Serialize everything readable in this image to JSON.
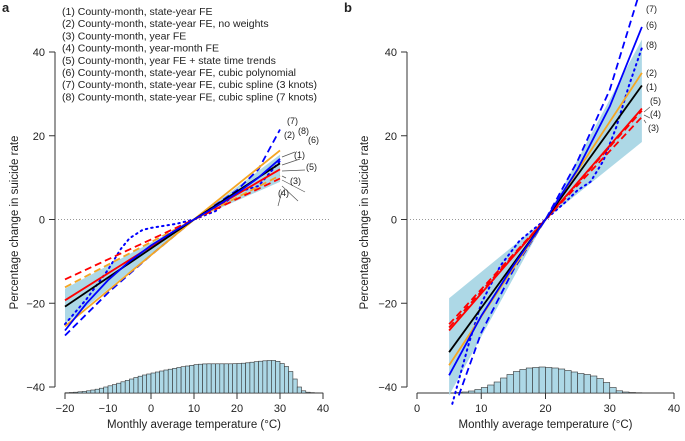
{
  "chart_data": [
    {
      "panel": "a",
      "type": "line",
      "xlabel": "Monthly average temperature (°C)",
      "ylabel": "Percentage change in suicide rate",
      "xlim": [
        -20,
        40
      ],
      "ylim": [
        -40,
        40
      ],
      "xticks": [
        -20,
        -10,
        0,
        10,
        20,
        30,
        40
      ],
      "yticks": [
        -40,
        -20,
        0,
        20,
        40
      ],
      "reference_line": 0,
      "legend_placement": "top-left",
      "legend": [
        "(1) County-month, state-year FE",
        "(2) County-month, state-year FE, no weights",
        "(3) County-month, year FE",
        "(4) County-month, year-month FE",
        "(5) County-month, year FE + state time trends",
        "(6) County-month, state-year FE, cubic polynomial",
        "(7) County-month, state-year FE, cubic spline (3 knots)",
        "(8) County-month, state-year FE, cubic spline (7 knots)"
      ],
      "confidence_band": {
        "x": [
          -20,
          10,
          30
        ],
        "lower": [
          -25,
          0,
          9
        ],
        "upper": [
          -16.5,
          0,
          15.5
        ],
        "color": "#add8e6"
      },
      "series": [
        {
          "name": "(1)",
          "color": "#000000",
          "style": "solid",
          "x": [
            -20,
            10,
            30
          ],
          "y": [
            -20.8,
            0,
            13.4
          ]
        },
        {
          "name": "(2)",
          "color": "#f5a623",
          "style": "solid",
          "x": [
            -20,
            10,
            30
          ],
          "y": [
            -25.5,
            0,
            16.5
          ]
        },
        {
          "name": "(3)",
          "color": "#f5a623",
          "style": "dashed",
          "x": [
            -20,
            10,
            30
          ],
          "y": [
            -16.2,
            0,
            10.5
          ]
        },
        {
          "name": "(4)",
          "color": "#ff0000",
          "style": "dashed",
          "x": [
            -20,
            10,
            30
          ],
          "y": [
            -14.3,
            0,
            9.8
          ]
        },
        {
          "name": "(5)",
          "color": "#ff0000",
          "style": "solid",
          "x": [
            -20,
            10,
            30
          ],
          "y": [
            -19.3,
            0,
            12
          ]
        },
        {
          "name": "(6)",
          "color": "#0000ff",
          "style": "solid",
          "x": [
            -20,
            -15,
            -10,
            -5,
            0,
            5,
            10,
            15,
            20,
            25,
            30
          ],
          "y": [
            -26.5,
            -20,
            -14.5,
            -10,
            -6.2,
            -3,
            0,
            3,
            6.3,
            10,
            14.5
          ]
        },
        {
          "name": "(7)",
          "color": "#0000ff",
          "style": "dashed",
          "x": [
            -20,
            -10,
            0,
            10,
            20,
            25,
            30
          ],
          "y": [
            -27.7,
            -17.5,
            -8.5,
            0,
            7,
            12,
            21.5
          ]
        },
        {
          "name": "(8)",
          "color": "#0000ff",
          "style": "dotted",
          "x": [
            -20,
            -15,
            -10,
            -7,
            -5,
            -2,
            0,
            3,
            6,
            10,
            15,
            20,
            25,
            30
          ],
          "y": [
            -25,
            -19,
            -12,
            -7,
            -4.5,
            -2.5,
            -2,
            -1.5,
            -1,
            0,
            2,
            6.5,
            8,
            14
          ]
        }
      ],
      "end_labels": [
        "(7)",
        "(2)",
        "(8)",
        "(6)",
        "(1)",
        "(5)",
        "(3)",
        "(4)"
      ],
      "histogram": {
        "bin_start": -20,
        "bin_width": 1,
        "counts": [
          0.3,
          0.5,
          0.8,
          1.2,
          1.6,
          2.2,
          3,
          3.8,
          4.8,
          6,
          7.2,
          8.4,
          9.8,
          11.2,
          12.6,
          14,
          15.5,
          16.8,
          18,
          19,
          20,
          21,
          22,
          23,
          23.8,
          24.6,
          25.5,
          26.3,
          27,
          27.7,
          28.4,
          28.8,
          29.1,
          29.2,
          29.2,
          29.2,
          29.2,
          29.2,
          29.2,
          29.3,
          29.5,
          29.8,
          30.2,
          30.8,
          31.3,
          31.8,
          32.2,
          32.5,
          32.5,
          31.7,
          29.5,
          26.5,
          21.5,
          14,
          6,
          2.2,
          0.8,
          0.4,
          0.2,
          0.1
        ],
        "fill": "#add8e6"
      }
    },
    {
      "panel": "b",
      "type": "line",
      "xlabel": "Monthly average temperature (°C)",
      "ylabel": "Percentage change in suicide rate",
      "xlim": [
        0,
        40
      ],
      "ylim": [
        -40,
        40
      ],
      "xticks": [
        0,
        10,
        20,
        30,
        40
      ],
      "yticks": [
        -40,
        -20,
        0,
        20,
        40
      ],
      "reference_line": 0,
      "confidence_band": {
        "x": [
          5,
          20,
          35
        ],
        "lower": [
          -42,
          0,
          18.5
        ],
        "upper": [
          -18.8,
          0,
          43
        ],
        "color": "#add8e6"
      },
      "series": [
        {
          "name": "(1)",
          "color": "#000000",
          "style": "solid",
          "x": [
            5,
            20,
            35
          ],
          "y": [
            -31.7,
            0,
            32
          ]
        },
        {
          "name": "(2)",
          "color": "#f5a623",
          "style": "solid",
          "x": [
            5,
            20,
            35
          ],
          "y": [
            -34.8,
            0,
            35
          ]
        },
        {
          "name": "(3)",
          "color": "#ff0000",
          "style": "dashed",
          "x": [
            5,
            20,
            35
          ],
          "y": [
            -25,
            0,
            24.5
          ]
        },
        {
          "name": "(4)",
          "color": "#ff0000",
          "style": "solid",
          "x": [
            5,
            20,
            35
          ],
          "y": [
            -26.5,
            0,
            26.5
          ]
        },
        {
          "name": "(5)",
          "color": "#ff0000",
          "style": "dashed",
          "x": [
            5,
            20,
            35
          ],
          "y": [
            -25.8,
            0,
            26
          ]
        },
        {
          "name": "(6)",
          "color": "#0000ff",
          "style": "solid",
          "x": [
            5,
            10,
            15,
            20,
            25,
            30,
            35
          ],
          "y": [
            -37.2,
            -23,
            -11,
            0,
            12,
            27,
            46
          ]
        },
        {
          "name": "(7)",
          "color": "#0000ff",
          "style": "dashed",
          "x": [
            6.5,
            10,
            15,
            20,
            25,
            30,
            35
          ],
          "y": [
            -42,
            -27,
            -12,
            0,
            14,
            31,
            56
          ]
        },
        {
          "name": "(8)",
          "color": "#0000ff",
          "style": "dotted",
          "x": [
            5.5,
            8,
            10,
            13,
            16,
            20,
            23,
            25,
            27,
            29,
            31,
            33,
            35
          ],
          "y": [
            -44,
            -30,
            -20,
            -11,
            -5,
            0,
            4,
            7,
            9,
            14,
            22,
            32,
            41
          ]
        }
      ],
      "end_labels": [
        "(7)",
        "(6)",
        "(8)",
        "(2)",
        "(1)",
        "(5)",
        "(4)",
        "(3)"
      ],
      "histogram": {
        "bin_start": 5,
        "bin_width": 1,
        "counts": [
          0.2,
          0.5,
          1,
          2,
          3.5,
          5.5,
          8,
          11,
          15,
          18.5,
          21.5,
          23.5,
          25,
          25.5,
          26,
          25.5,
          25,
          24,
          22.5,
          21,
          19.5,
          18.5,
          17,
          14.5,
          10.5,
          5.5,
          2.2,
          1,
          0.5,
          0.3
        ],
        "fill": "#add8e6"
      }
    }
  ],
  "panels": {
    "a": "a",
    "b": "b"
  }
}
